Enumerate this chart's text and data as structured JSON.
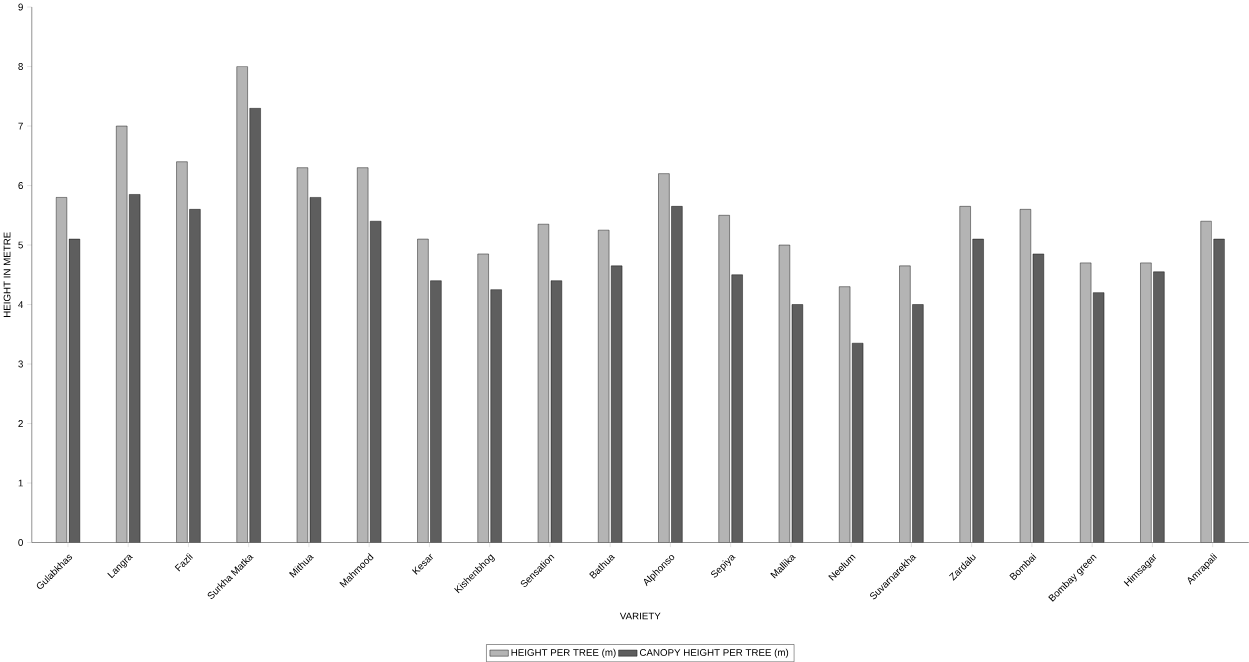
{
  "chart_data": {
    "type": "bar",
    "xlabel": "VARIETY",
    "ylabel": "HEIGHT IN METRE",
    "categories": [
      "Gulabkhas",
      "Langra",
      "Fazli",
      "Surkha Matka",
      "Mithua",
      "Mahmood",
      "Kesar",
      "Kishenbhog",
      "Sensation",
      "Bathua",
      "Alphonso",
      "Sepiya",
      "Mallika",
      "Neelum",
      "Suvarnarekha",
      "Zardalu",
      "Bombai",
      "Bombay green",
      "Himsagar",
      "Amrapali"
    ],
    "series": [
      {
        "name": "HEIGHT PER TREE (m)",
        "color": "#b4b4b4",
        "values": [
          5.8,
          7.0,
          6.4,
          8.0,
          6.3,
          6.3,
          5.1,
          4.85,
          5.35,
          5.25,
          6.2,
          5.5,
          5.0,
          4.3,
          4.65,
          5.65,
          5.6,
          4.7,
          4.7,
          5.4
        ]
      },
      {
        "name": "CANOPY HEIGHT PER TREE (m)",
        "color": "#5e5e5e",
        "values": [
          5.1,
          5.85,
          5.6,
          7.3,
          5.8,
          5.4,
          4.4,
          4.25,
          4.4,
          4.65,
          5.65,
          4.5,
          4.0,
          3.35,
          4.0,
          5.1,
          4.85,
          4.2,
          4.55,
          5.1
        ]
      }
    ],
    "ylim": [
      0,
      9
    ],
    "yticks": [
      0,
      1,
      2,
      3,
      4,
      5,
      6,
      7,
      8,
      9
    ],
    "grid": false,
    "legend": "bottom"
  }
}
